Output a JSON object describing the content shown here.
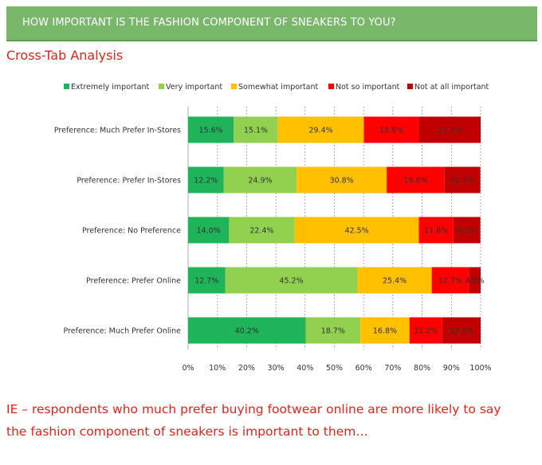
{
  "header": {
    "title": "HOW IMPORTANT IS THE FASHION COMPONENT OF SNEAKERS TO YOU?"
  },
  "subtitle": "Cross-Tab Analysis",
  "note": "IE – respondents who much prefer buying footwear online are more likely to say the fashion component of sneakers is important to them…",
  "colors": {
    "extremely_important": "#1fb35a",
    "very_important": "#92d050",
    "somewhat_important": "#ffc000",
    "not_so_important": "#ff0000",
    "not_at_all_important": "#c00000",
    "banner": "#79b76a",
    "accent_text": "#e2231a"
  },
  "chart_data": {
    "type": "bar",
    "orientation": "horizontal",
    "stacked": "percent",
    "categories": [
      "Preference: Much Prefer In-Stores",
      "Preference: Prefer In-Stores",
      "Preference: No Preference",
      "Preference: Prefer Online",
      "Preference: Much Prefer Online"
    ],
    "series": [
      {
        "name": "Extremely important",
        "values": [
          15.6,
          12.2,
          14.0,
          12.7,
          40.2
        ]
      },
      {
        "name": "Very important",
        "values": [
          15.1,
          24.9,
          22.4,
          45.2,
          18.7
        ]
      },
      {
        "name": "Somewhat important",
        "values": [
          29.4,
          30.8,
          42.5,
          25.4,
          16.8
        ]
      },
      {
        "name": "Not so important",
        "values": [
          18.8,
          19.8,
          11.8,
          12.7,
          11.2
        ]
      },
      {
        "name": "Not at all important",
        "values": [
          21.1,
          12.2,
          9.2,
          4.0,
          13.1
        ]
      }
    ],
    "xlim": [
      0,
      100
    ],
    "xticks": [
      "0%",
      "10%",
      "20%",
      "30%",
      "40%",
      "50%",
      "60%",
      "70%",
      "80%",
      "90%",
      "100%"
    ],
    "grid": "vertical-dashed",
    "legend_position": "top"
  }
}
